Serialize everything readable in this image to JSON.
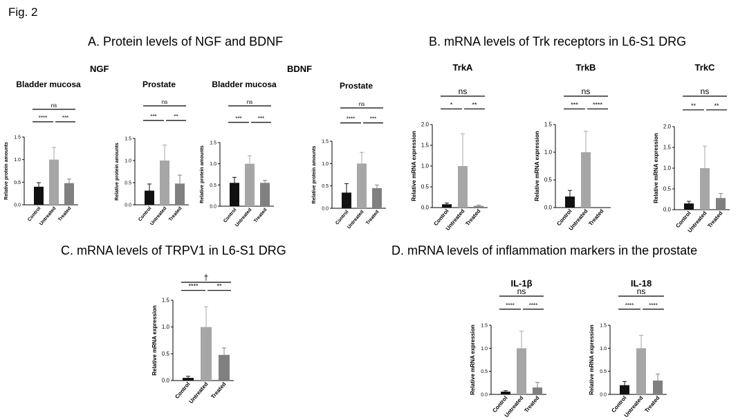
{
  "figure_label": "Fig. 2",
  "sections": {
    "A": "A. Protein levels of NGF and BDNF",
    "B": "B. mRNA levels of Trk receptors in L6-S1 DRG",
    "C": "C. mRNA levels of TRPV1 in L6-S1 DRG",
    "D": "D. mRNA levels of inflammation markers in the prostate"
  },
  "group_titles": {
    "ngf": "NGF",
    "bdnf": "BDNF"
  },
  "colors": {
    "control": "#111111",
    "untreated": "#a6a6a6",
    "treated": "#808080"
  },
  "chart_data": [
    {
      "id": "ngf_bladder",
      "type": "bar",
      "title": "Bladder mucosa",
      "ylabel": "Relative protein amounts",
      "categories": [
        "Control",
        "Untreated",
        "Treated"
      ],
      "values": [
        0.4,
        1.0,
        0.48
      ],
      "errors": [
        0.09,
        0.27,
        0.09
      ],
      "ylim": [
        0,
        1.5
      ],
      "yticks": [
        "0.0",
        "0.5",
        "1.0",
        "1.5"
      ],
      "significance": [
        {
          "from": 0,
          "to": 1,
          "label": "****"
        },
        {
          "from": 1,
          "to": 2,
          "label": "***"
        },
        {
          "from": 0,
          "to": 2,
          "label": "ns"
        }
      ]
    },
    {
      "id": "ngf_prostate",
      "type": "bar",
      "title": "Prostate",
      "ylabel": "Relative protein amounts",
      "categories": [
        "Control",
        "Untreated",
        "Treated"
      ],
      "values": [
        0.32,
        1.0,
        0.48
      ],
      "errors": [
        0.15,
        0.35,
        0.19
      ],
      "ylim": [
        0,
        1.5
      ],
      "yticks": [
        "0.0",
        "0.5",
        "1.0",
        "1.5"
      ],
      "significance": [
        {
          "from": 0,
          "to": 1,
          "label": "***"
        },
        {
          "from": 1,
          "to": 2,
          "label": "**"
        },
        {
          "from": 0,
          "to": 2,
          "label": "ns"
        }
      ]
    },
    {
      "id": "bdnf_bladder",
      "type": "bar",
      "title": "Bladder mucosa",
      "ylabel": "Relative protein amounts",
      "categories": [
        "Control",
        "Untreated",
        "Treated"
      ],
      "values": [
        0.55,
        1.0,
        0.55
      ],
      "errors": [
        0.13,
        0.19,
        0.06
      ],
      "ylim": [
        0,
        1.5
      ],
      "yticks": [
        "0.0",
        "0.5",
        "1.0",
        "1.5"
      ],
      "significance": [
        {
          "from": 0,
          "to": 1,
          "label": "***"
        },
        {
          "from": 1,
          "to": 2,
          "label": "***"
        },
        {
          "from": 0,
          "to": 2,
          "label": "ns"
        }
      ]
    },
    {
      "id": "bdnf_prostate",
      "type": "bar",
      "title": "Prostate",
      "ylabel": "Relative protein amounts",
      "categories": [
        "Control",
        "Untreated",
        "Treated"
      ],
      "values": [
        0.35,
        1.0,
        0.45
      ],
      "errors": [
        0.2,
        0.25,
        0.07
      ],
      "ylim": [
        0,
        1.5
      ],
      "yticks": [
        "0.0",
        "0.5",
        "1.0",
        "1.5"
      ],
      "significance": [
        {
          "from": 0,
          "to": 1,
          "label": "****"
        },
        {
          "from": 1,
          "to": 2,
          "label": "***"
        },
        {
          "from": 0,
          "to": 2,
          "label": "ns"
        }
      ]
    },
    {
      "id": "trka",
      "type": "bar",
      "title": "TrkA",
      "ylabel": "Relative mRNA expression",
      "categories": [
        "Control",
        "Untreated",
        "Treated"
      ],
      "values": [
        0.08,
        1.0,
        0.04
      ],
      "errors": [
        0.03,
        0.78,
        0.02
      ],
      "ylim": [
        0,
        2.0
      ],
      "yticks": [
        "0.0",
        "0.5",
        "1.0",
        "1.5",
        "2.0"
      ],
      "significance": [
        {
          "from": 0,
          "to": 1,
          "label": "*"
        },
        {
          "from": 1,
          "to": 2,
          "label": "**"
        },
        {
          "from": 0,
          "to": 2,
          "label": "ns"
        }
      ]
    },
    {
      "id": "trkb",
      "type": "bar",
      "title": "TrkB",
      "ylabel": "Relative mRNA expression",
      "categories": [
        "Control",
        "Untreated",
        "Treated"
      ],
      "values": [
        0.2,
        1.0,
        0.0
      ],
      "errors": [
        0.11,
        0.38,
        0.0
      ],
      "ylim": [
        0,
        1.5
      ],
      "yticks": [
        "0.0",
        "0.5",
        "1.0",
        "1.5"
      ],
      "significance": [
        {
          "from": 0,
          "to": 1,
          "label": "***"
        },
        {
          "from": 1,
          "to": 2,
          "label": "****"
        },
        {
          "from": 0,
          "to": 2,
          "label": "ns"
        }
      ]
    },
    {
      "id": "trkc",
      "type": "bar",
      "title": "TrkC",
      "ylabel": "Relative mRNA expression",
      "categories": [
        "Control",
        "Untreated",
        "Treated"
      ],
      "values": [
        0.15,
        1.0,
        0.28
      ],
      "errors": [
        0.05,
        0.53,
        0.11
      ],
      "ylim": [
        0,
        2.0
      ],
      "yticks": [
        "0.0",
        "0.5",
        "1.0",
        "1.5",
        "2.0"
      ],
      "significance": [
        {
          "from": 0,
          "to": 1,
          "label": "**"
        },
        {
          "from": 1,
          "to": 2,
          "label": "**"
        },
        {
          "from": 0,
          "to": 2,
          "label": "ns"
        }
      ]
    },
    {
      "id": "trpv1",
      "type": "bar",
      "title": "",
      "ylabel": "Relative mRNA expression",
      "categories": [
        "Control",
        "Untreated",
        "Treated"
      ],
      "values": [
        0.05,
        1.0,
        0.48
      ],
      "errors": [
        0.03,
        0.38,
        0.13
      ],
      "ylim": [
        0,
        1.5
      ],
      "yticks": [
        "0.0",
        "0.5",
        "1.0",
        "1.5"
      ],
      "significance": [
        {
          "from": 0,
          "to": 1,
          "label": "****"
        },
        {
          "from": 1,
          "to": 2,
          "label": "**"
        },
        {
          "from": 0,
          "to": 2,
          "label": "†"
        }
      ]
    },
    {
      "id": "il1b",
      "type": "bar",
      "title": "IL-1β",
      "ylabel": "Relative mRNA expression",
      "categories": [
        "Control",
        "Untreated",
        "Treated"
      ],
      "values": [
        0.06,
        1.0,
        0.15
      ],
      "errors": [
        0.02,
        0.37,
        0.11
      ],
      "ylim": [
        0,
        1.5
      ],
      "yticks": [
        "0.0",
        "0.5",
        "1.0",
        "1.5"
      ],
      "significance": [
        {
          "from": 0,
          "to": 1,
          "label": "****"
        },
        {
          "from": 1,
          "to": 2,
          "label": "****"
        },
        {
          "from": 0,
          "to": 2,
          "label": "ns"
        }
      ]
    },
    {
      "id": "il18",
      "type": "bar",
      "title": "IL-18",
      "ylabel": "Relative mRNA expression",
      "categories": [
        "Control",
        "Untreated",
        "Treated"
      ],
      "values": [
        0.2,
        1.0,
        0.3
      ],
      "errors": [
        0.08,
        0.28,
        0.14
      ],
      "ylim": [
        0,
        1.5
      ],
      "yticks": [
        "0.0",
        "0.5",
        "1.0",
        "1.5"
      ],
      "significance": [
        {
          "from": 0,
          "to": 1,
          "label": "****"
        },
        {
          "from": 1,
          "to": 2,
          "label": "****"
        },
        {
          "from": 0,
          "to": 2,
          "label": "ns"
        }
      ]
    }
  ]
}
